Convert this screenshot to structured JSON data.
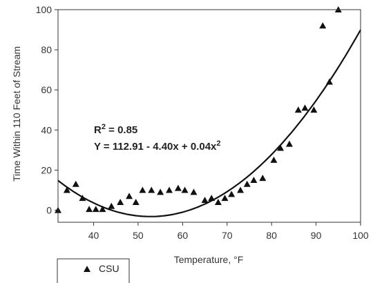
{
  "chart_data": {
    "type": "scatter",
    "title": "",
    "xlabel": "Temperature, °F",
    "ylabel": "Time Within 110 Feet of Stream",
    "xlim": [
      32,
      100
    ],
    "ylim": [
      -6,
      100
    ],
    "xticks": [
      40,
      50,
      60,
      70,
      80,
      90,
      100
    ],
    "yticks": [
      0,
      20,
      40,
      60,
      80,
      100
    ],
    "grid": false,
    "legend": {
      "position": "bottom-left",
      "entries": [
        "CSU"
      ]
    },
    "series": [
      {
        "name": "CSU",
        "marker": "triangle",
        "color": "#111111",
        "points": [
          [
            32,
            0
          ],
          [
            34,
            10
          ],
          [
            36,
            13
          ],
          [
            37.5,
            6
          ],
          [
            39,
            0.5
          ],
          [
            40.5,
            0.5
          ],
          [
            42,
            0.5
          ],
          [
            44,
            2
          ],
          [
            46,
            4
          ],
          [
            48,
            7
          ],
          [
            49.5,
            4
          ],
          [
            51,
            10
          ],
          [
            53,
            10
          ],
          [
            55,
            9
          ],
          [
            57,
            10
          ],
          [
            59,
            11
          ],
          [
            60.5,
            10
          ],
          [
            62.5,
            9
          ],
          [
            65,
            5
          ],
          [
            66.5,
            6
          ],
          [
            68,
            4
          ],
          [
            69.5,
            6
          ],
          [
            71,
            8
          ],
          [
            73,
            10
          ],
          [
            74.5,
            13
          ],
          [
            76,
            15
          ],
          [
            78,
            16
          ],
          [
            80.5,
            25
          ],
          [
            82,
            31
          ],
          [
            84,
            33
          ],
          [
            86,
            50
          ],
          [
            87.5,
            51
          ],
          [
            89.5,
            50
          ],
          [
            91.5,
            92
          ],
          [
            93,
            64
          ],
          [
            95,
            100
          ]
        ]
      }
    ],
    "fit": {
      "equation": "Y = 112.91 - 4.40x + 0.04x2",
      "a": 112.91,
      "b": -4.4,
      "c": 0.0417,
      "r2_label": "R2 = 0.85"
    },
    "annotations": {
      "r2_prefix": "R",
      "r2_exp": "2",
      "r2_rest": " = 0.85",
      "eq_main": "Y = 112.91 - 4.40x + 0.04x",
      "eq_exp": "2"
    }
  }
}
